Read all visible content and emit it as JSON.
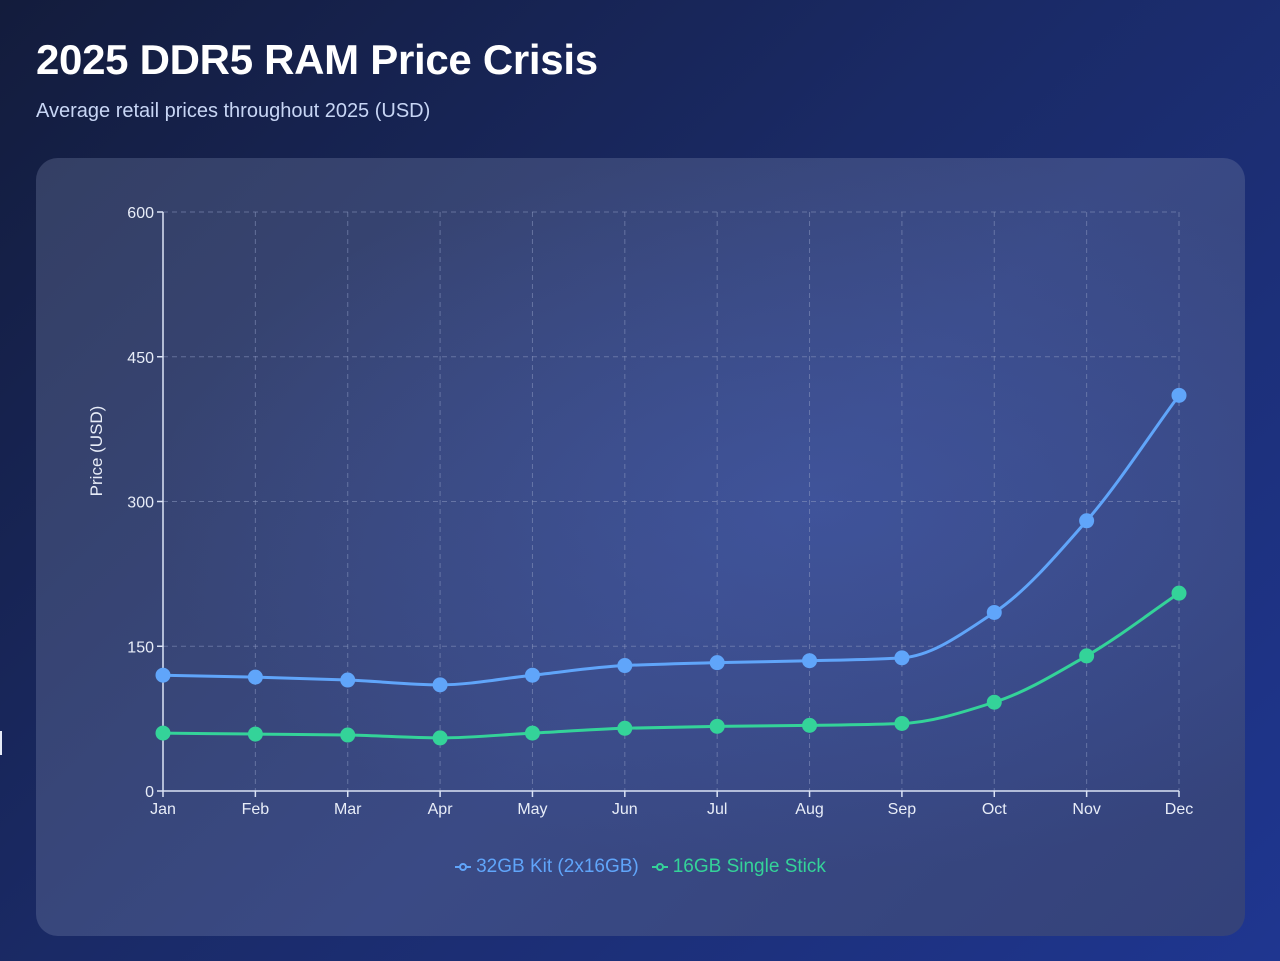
{
  "header": {
    "title": "2025 DDR5 RAM Price Crisis",
    "subtitle": "Average retail prices throughout 2025 (USD)"
  },
  "chart_data": {
    "type": "line",
    "title": "2025 DDR5 RAM Price Crisis",
    "subtitle": "Average retail prices throughout 2025 (USD)",
    "xlabel": "",
    "ylabel": "Price (USD)",
    "categories": [
      "Jan",
      "Feb",
      "Mar",
      "Apr",
      "May",
      "Jun",
      "Jul",
      "Aug",
      "Sep",
      "Oct",
      "Nov",
      "Dec"
    ],
    "ylim": [
      0,
      600
    ],
    "yticks": [
      0,
      150,
      300,
      450,
      600
    ],
    "grid": true,
    "legend_position": "bottom-center",
    "series": [
      {
        "name": "32GB Kit (2x16GB)",
        "color": "#60a5fa",
        "values": [
          120,
          118,
          115,
          110,
          120,
          130,
          133,
          135,
          138,
          185,
          280,
          410
        ]
      },
      {
        "name": "16GB Single Stick",
        "color": "#34d399",
        "values": [
          60,
          59,
          58,
          55,
          60,
          65,
          67,
          68,
          70,
          92,
          140,
          205
        ]
      }
    ]
  },
  "colors": {
    "axis": "#dbe3f5",
    "grid": "#8a98c0",
    "tick_text": "#e8edf8"
  }
}
